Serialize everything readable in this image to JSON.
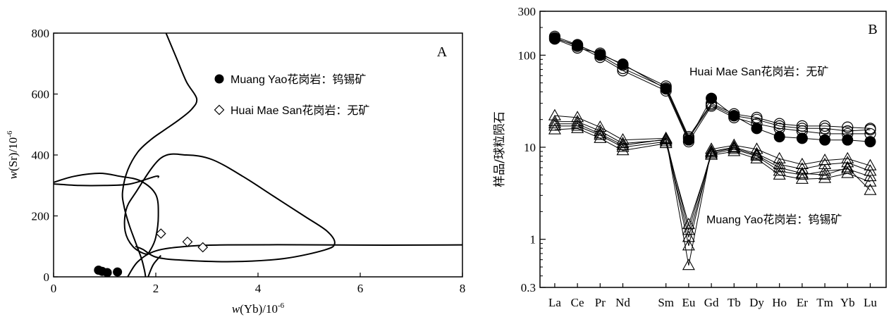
{
  "chart_data": [
    {
      "type": "scatter",
      "panel_label": "A",
      "xlabel_main": "w",
      "xlabel_paren": "(Yb)/10",
      "xlabel_sup": "-6",
      "ylabel_main": "w",
      "ylabel_paren": "(Sr)/10",
      "ylabel_sup": "-6",
      "xlim": [
        0,
        8
      ],
      "ylim": [
        0,
        800
      ],
      "xticks": [
        0,
        2,
        4,
        6,
        8
      ],
      "yticks": [
        0,
        200,
        400,
        600,
        800
      ],
      "legend_position": "top-right",
      "series": [
        {
          "name": "Muang Yao花岗岩：钨锡矿",
          "marker": "filled-circle",
          "points": [
            [
              0.88,
              22
            ],
            [
              0.95,
              18
            ],
            [
              1.05,
              14
            ],
            [
              1.25,
              16
            ]
          ]
        },
        {
          "name": "Huai Mae San花岗岩：无矿",
          "marker": "open-diamond",
          "points": [
            [
              2.1,
              142
            ],
            [
              2.62,
              115
            ],
            [
              2.92,
              97
            ]
          ]
        }
      ],
      "curves": [
        [
          [
            2.2,
            800
          ],
          [
            2.4,
            720
          ],
          [
            2.6,
            640
          ],
          [
            2.8,
            585
          ],
          [
            2.7,
            550
          ],
          [
            2.45,
            515
          ],
          [
            2.15,
            480
          ],
          [
            1.9,
            450
          ],
          [
            1.65,
            410
          ],
          [
            1.45,
            350
          ],
          [
            1.35,
            280
          ],
          [
            1.38,
            230
          ],
          [
            1.48,
            170
          ],
          [
            1.6,
            115
          ],
          [
            1.72,
            60
          ],
          [
            1.78,
            20
          ],
          [
            1.8,
            0
          ]
        ],
        [
          [
            0,
            310
          ],
          [
            0.4,
            330
          ],
          [
            0.9,
            340
          ],
          [
            1.3,
            330
          ],
          [
            1.7,
            315
          ],
          [
            2.0,
            270
          ],
          [
            2.05,
            200
          ],
          [
            2.0,
            130
          ],
          [
            1.9,
            90
          ],
          [
            1.8,
            75
          ],
          [
            1.55,
            100
          ],
          [
            1.4,
            150
          ],
          [
            1.42,
            220
          ],
          [
            1.6,
            275
          ],
          [
            2.1,
            390
          ],
          [
            2.6,
            400
          ],
          [
            3.1,
            385
          ],
          [
            3.7,
            330
          ],
          [
            4.3,
            265
          ],
          [
            4.9,
            200
          ],
          [
            5.35,
            150
          ],
          [
            5.5,
            110
          ],
          [
            5.3,
            88
          ],
          [
            4.5,
            60
          ],
          [
            3.5,
            50
          ],
          [
            2.5,
            55
          ],
          [
            2.0,
            65
          ],
          [
            1.75,
            90
          ],
          [
            1.6,
            100
          ]
        ],
        [
          [
            0,
            305
          ],
          [
            0.5,
            300
          ],
          [
            1.0,
            300
          ],
          [
            1.5,
            305
          ],
          [
            2.0,
            330
          ],
          [
            2.05,
            325
          ]
        ],
        [
          [
            1.45,
            0
          ],
          [
            1.65,
            50
          ],
          [
            2.0,
            85
          ],
          [
            2.6,
            100
          ],
          [
            3.4,
            105
          ],
          [
            5.2,
            105
          ],
          [
            6.5,
            104
          ],
          [
            8.0,
            105
          ]
        ],
        [
          [
            1.85,
            0
          ],
          [
            1.95,
            40
          ],
          [
            2.1,
            70
          ]
        ]
      ]
    },
    {
      "type": "line",
      "panel_label": "B",
      "ylabel": "样品/球粒陨石",
      "yscale": "log",
      "ylim": [
        0.3,
        300
      ],
      "ytick_labels": [
        "0.3",
        "1",
        "10",
        "100",
        "300"
      ],
      "yticks": [
        0.3,
        1,
        10,
        100,
        300
      ],
      "categories": [
        "La",
        "Ce",
        "Pr",
        "Nd",
        "Sm",
        "Eu",
        "Gd",
        "Tb",
        "Dy",
        "Ho",
        "Er",
        "Tm",
        "Yb",
        "Lu"
      ],
      "category_positions": [
        1,
        2,
        3,
        4,
        5.9,
        6.9,
        7.9,
        8.9,
        9.9,
        10.9,
        11.9,
        12.9,
        13.9,
        14.9
      ],
      "annotations": [
        "Huai Mae San花岗岩：无矿",
        "Muang Yao花岗岩：钨锡矿"
      ],
      "series": [
        {
          "marker": "open-circle",
          "values": [
            155,
            125,
            95,
            68,
            41,
            11.5,
            28,
            21,
            18,
            16,
            15,
            14,
            14,
            14
          ]
        },
        {
          "marker": "open-circle",
          "values": [
            160,
            130,
            100,
            72,
            44,
            12.5,
            29,
            22,
            20,
            17,
            16,
            16,
            15,
            15.5
          ]
        },
        {
          "marker": "open-circle",
          "values": [
            150,
            120,
            105,
            78,
            46,
            13,
            30,
            23,
            21,
            18,
            17,
            17,
            16.5,
            16
          ]
        },
        {
          "marker": "filled-circle",
          "values": [
            152,
            128,
            102,
            80,
            43,
            12,
            34,
            22,
            16,
            13,
            12.5,
            12,
            12,
            11.5
          ]
        },
        {
          "marker": "open-triangle",
          "values": [
            22,
            21,
            16.5,
            12,
            12.5,
            0.52,
            9.5,
            10.5,
            9.5,
            7.5,
            6.5,
            7.2,
            7.5,
            6.3
          ]
        },
        {
          "marker": "open-triangle",
          "values": [
            19,
            19,
            15,
            11,
            12,
            0.85,
            9,
            10,
            8.5,
            6.5,
            5.8,
            6.5,
            6.8,
            5.5
          ]
        },
        {
          "marker": "open-triangle",
          "values": [
            17,
            17,
            13.5,
            10,
            11.5,
            1.05,
            8.5,
            9.5,
            8,
            5.5,
            5,
            5.5,
            5.8,
            4.8
          ]
        },
        {
          "marker": "open-triangle",
          "values": [
            15.5,
            16,
            12.5,
            9.2,
            11,
            1.45,
            8.2,
            9,
            7.5,
            5,
            4.5,
            4.6,
            5.2,
            4.2
          ]
        },
        {
          "marker": "open-triangle",
          "values": [
            18,
            18,
            14,
            10.5,
            12.2,
            1.25,
            8.8,
            9.8,
            8.2,
            6,
            5.2,
            5,
            6,
            3.4
          ]
        }
      ]
    }
  ]
}
